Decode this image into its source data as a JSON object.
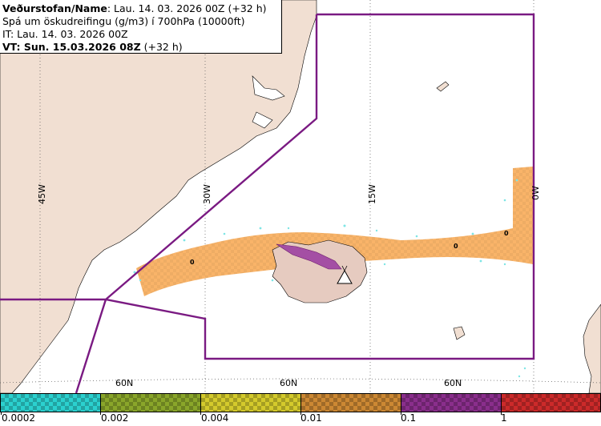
{
  "info": {
    "agency_label": "Veðurstofan/Name",
    "agency_value": ": Lau. 14. 03. 2026 00Z (+32 h)",
    "forecast_desc": "Spá um öskudreifingu (g/m3) í 700hPa (10000ft)",
    "issue_time": "IT: Lau. 14. 03. 2026 00Z",
    "valid_time_bold": "VT: Sun. 15.03.2026 08Z",
    "valid_time_rest": " (+32 h)"
  },
  "map": {
    "meridian_labels": [
      "45W",
      "30W",
      "15W",
      "0W"
    ],
    "parallel_labels": [
      "60N",
      "60N",
      "60N"
    ],
    "concentration_labels": [
      "0",
      "0",
      "0"
    ]
  },
  "colorscale": {
    "colors": [
      "#2bd1cf",
      "#8aa62a",
      "#d4ca2c",
      "#cc8833",
      "#8a2e8c",
      "#cc2a2a"
    ],
    "tick_labels": [
      "0.0002",
      "0.002",
      "0.004",
      "0.01",
      "0.1",
      "1"
    ]
  }
}
